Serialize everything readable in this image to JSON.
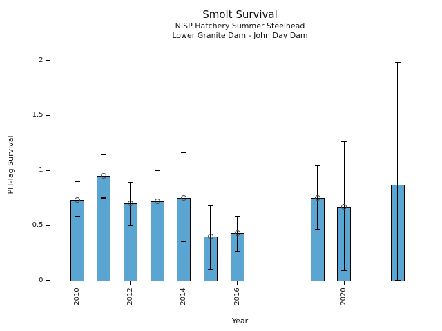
{
  "header": {
    "title": "Smolt Survival",
    "subtitle_line1": "NISP Hatchery Summer Steelhead",
    "subtitle_line2": "Lower Granite Dam - John Day Dam"
  },
  "chart_data": {
    "type": "bar",
    "title": "Smolt Survival",
    "subtitle": [
      "NISP Hatchery Summer Steelhead",
      "Lower Granite Dam - John Day Dam"
    ],
    "xlabel": "Year",
    "ylabel": "PIT-Tag Survival",
    "x_ticks": [
      2010,
      2012,
      2014,
      2016,
      2020
    ],
    "y_ticks": [
      0,
      0.5,
      1,
      1.5,
      2
    ],
    "xlim": [
      2009,
      2023.2
    ],
    "ylim": [
      0,
      2.1
    ],
    "grid": false,
    "legend": "none",
    "bar_color": "#5AA5D2",
    "bar_edge_color": "#000000",
    "error_bar_color": "#000000",
    "marker_style": "open-circle",
    "bars": [
      {
        "year": 2010,
        "value": 0.73,
        "ci_low": 0.58,
        "ci_high": 0.9,
        "marker": true
      },
      {
        "year": 2011,
        "value": 0.95,
        "ci_low": 0.75,
        "ci_high": 1.14,
        "marker": true
      },
      {
        "year": 2012,
        "value": 0.7,
        "ci_low": 0.5,
        "ci_high": 0.89,
        "marker": true
      },
      {
        "year": 2013,
        "value": 0.72,
        "ci_low": 0.44,
        "ci_high": 1.0,
        "marker": true
      },
      {
        "year": 2014,
        "value": 0.75,
        "ci_low": 0.35,
        "ci_high": 1.16,
        "marker": true
      },
      {
        "year": 2015,
        "value": 0.4,
        "ci_low": 0.1,
        "ci_high": 0.68,
        "marker": true
      },
      {
        "year": 2016,
        "value": 0.43,
        "ci_low": 0.26,
        "ci_high": 0.58,
        "marker": true
      },
      {
        "year": 2019,
        "value": 0.75,
        "ci_low": 0.46,
        "ci_high": 1.04,
        "marker": true
      },
      {
        "year": 2020,
        "value": 0.67,
        "ci_low": 0.09,
        "ci_high": 1.26,
        "marker": true
      },
      {
        "year": 2022,
        "value": 0.87,
        "ci_low": 0.0,
        "ci_high": 1.98,
        "marker": false
      }
    ]
  }
}
